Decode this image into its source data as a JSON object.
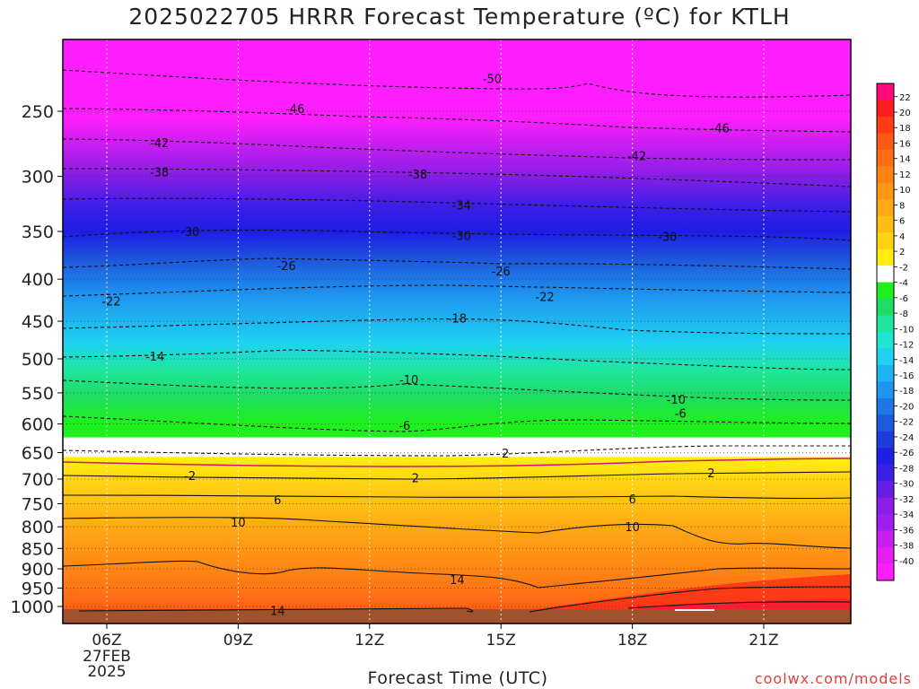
{
  "title": "2025022705 HRRR Forecast Temperature (ºC) for KTLH",
  "xlabel": "Forecast Time (UTC)",
  "credit": "coolwx.com/models",
  "chart_data": {
    "type": "heatmap",
    "title": "2025022705 HRRR Forecast Temperature (ºC) for KTLH",
    "xlabel": "Forecast Time (UTC)",
    "ylabel": "",
    "y_axis_inverted": true,
    "xlim_hours_utc": [
      4.9,
      23.8
    ],
    "ylim_pressure_hpa": [
      1040,
      200
    ],
    "x_ticks": [
      {
        "value": 6,
        "label": "06Z",
        "sub": [
          "27FEB",
          "2025"
        ]
      },
      {
        "value": 9,
        "label": "09Z"
      },
      {
        "value": 12,
        "label": "12Z"
      },
      {
        "value": 15,
        "label": "15Z"
      },
      {
        "value": 18,
        "label": "18Z"
      },
      {
        "value": 21,
        "label": "21Z"
      }
    ],
    "y_ticks": [
      250,
      300,
      350,
      400,
      450,
      500,
      550,
      600,
      650,
      700,
      750,
      800,
      850,
      900,
      950,
      1000
    ],
    "grid": true,
    "legend_position": "right",
    "colorbar_labels": [
      "22",
      "20",
      "18",
      "16",
      "14",
      "12",
      "10",
      "8",
      "6",
      "4",
      "2",
      "-2",
      "-4",
      "-6",
      "-8",
      "-10",
      "-12",
      "-14",
      "-16",
      "-18",
      "-20",
      "-22",
      "-24",
      "-26",
      "-28",
      "-30",
      "-32",
      "-34",
      "-36",
      "-38",
      "-40"
    ],
    "colorbar_colors": [
      "#ff0a78",
      "#ff1e1e",
      "#ff3c14",
      "#ff5a14",
      "#ff6e14",
      "#ff8214",
      "#ff9614",
      "#ffaa14",
      "#ffbe14",
      "#ffd214",
      "#ffee10",
      "#ffffff",
      "#1ef01e",
      "#1edc64",
      "#1ee6a0",
      "#1ee6d2",
      "#1ed2f0",
      "#1eb4f0",
      "#1e96f0",
      "#1e78e6",
      "#1e5adc",
      "#1e3cdc",
      "#1e1ee6",
      "#3c1ee6",
      "#641ee6",
      "#8c1ee6",
      "#a01ef0",
      "#c81ef0",
      "#e61ef0",
      "#ff1eff"
    ],
    "temperature_profile_at_06z": [
      {
        "pressure": 230,
        "temp": -50
      },
      {
        "pressure": 250,
        "temp": -46
      },
      {
        "pressure": 275,
        "temp": -42
      },
      {
        "pressure": 295,
        "temp": -38
      },
      {
        "pressure": 323,
        "temp": -34
      },
      {
        "pressure": 355,
        "temp": -30
      },
      {
        "pressure": 390,
        "temp": -26
      },
      {
        "pressure": 423,
        "temp": -22
      },
      {
        "pressure": 462,
        "temp": -18
      },
      {
        "pressure": 500,
        "temp": -14
      },
      {
        "pressure": 545,
        "temp": -10
      },
      {
        "pressure": 595,
        "temp": -6
      },
      {
        "pressure": 660,
        "temp": -2
      },
      {
        "pressure": 680,
        "temp": 2
      },
      {
        "pressure": 740,
        "temp": 6
      },
      {
        "pressure": 790,
        "temp": 10
      },
      {
        "pressure": 920,
        "temp": 14
      },
      {
        "pressure": 1000,
        "temp": 16
      },
      {
        "pressure": 1020,
        "temp": 17
      }
    ],
    "contour_labels": [
      {
        "value": "-50",
        "x": 14.8,
        "p": 228
      },
      {
        "value": "-46",
        "x": 10.3,
        "p": 248
      },
      {
        "value": "-46",
        "x": 20.0,
        "p": 262
      },
      {
        "value": "-42",
        "x": 7.2,
        "p": 273
      },
      {
        "value": "-42",
        "x": 18.1,
        "p": 283
      },
      {
        "value": "-38",
        "x": 7.2,
        "p": 296
      },
      {
        "value": "-38",
        "x": 13.1,
        "p": 298
      },
      {
        "value": "-34",
        "x": 14.1,
        "p": 325
      },
      {
        "value": "-30",
        "x": 7.9,
        "p": 350
      },
      {
        "value": "-30",
        "x": 14.1,
        "p": 354
      },
      {
        "value": "-30",
        "x": 18.8,
        "p": 355
      },
      {
        "value": "-26",
        "x": 10.1,
        "p": 385
      },
      {
        "value": "-26",
        "x": 15.0,
        "p": 391
      },
      {
        "value": "-22",
        "x": 6.1,
        "p": 425
      },
      {
        "value": "-22",
        "x": 16.0,
        "p": 420
      },
      {
        "value": "-18",
        "x": 14.0,
        "p": 446
      },
      {
        "value": "-14",
        "x": 7.1,
        "p": 496
      },
      {
        "value": "-10",
        "x": 12.9,
        "p": 530
      },
      {
        "value": "-10",
        "x": 19.0,
        "p": 560
      },
      {
        "value": "-6",
        "x": 12.8,
        "p": 602
      },
      {
        "value": "-6",
        "x": 19.1,
        "p": 582
      },
      {
        "value": "2",
        "x": 15.1,
        "p": 651
      },
      {
        "value": "-2",
        "x": 7.9,
        "p": 693
      },
      {
        "value": "-2",
        "x": 13.0,
        "p": 697
      },
      {
        "value": "2",
        "x": 19.8,
        "p": 688
      },
      {
        "value": "6",
        "x": 9.9,
        "p": 742
      },
      {
        "value": "6",
        "x": 18.0,
        "p": 740
      },
      {
        "value": "10",
        "x": 9.0,
        "p": 790
      },
      {
        "value": "10",
        "x": 18.0,
        "p": 800
      },
      {
        "value": "14",
        "x": 14.0,
        "p": 928
      },
      {
        "value": "14",
        "x": 9.9,
        "p": 1012
      }
    ]
  }
}
